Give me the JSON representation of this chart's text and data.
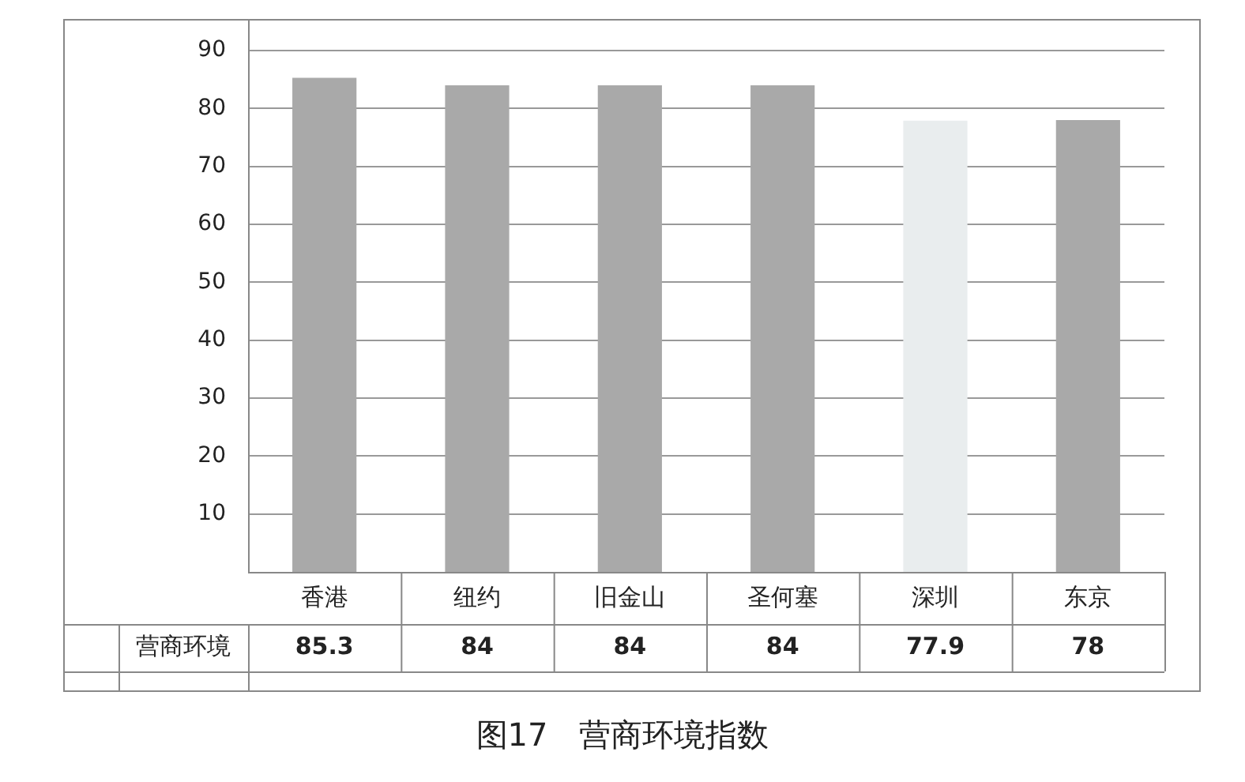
{
  "chart_data": {
    "type": "bar",
    "title": "图17　营商环境指数",
    "categories": [
      "香港",
      "纽约",
      "旧金山",
      "圣何塞",
      "深圳",
      "东京"
    ],
    "series": [
      {
        "name": "营商环境",
        "colors": [
          "#a9a9a9",
          "#a9a9a9",
          "#a9a9a9",
          "#a9a9a9",
          "#e9edee",
          "#a9a9a9"
        ],
        "values": [
          85.3,
          84,
          84,
          84,
          77.9,
          78
        ]
      }
    ],
    "ylim": [
      0,
      90
    ],
    "yticks": [
      10,
      20,
      30,
      40,
      50,
      60,
      70,
      80,
      90
    ],
    "grid": "y",
    "legend": false,
    "data_labels": true
  }
}
